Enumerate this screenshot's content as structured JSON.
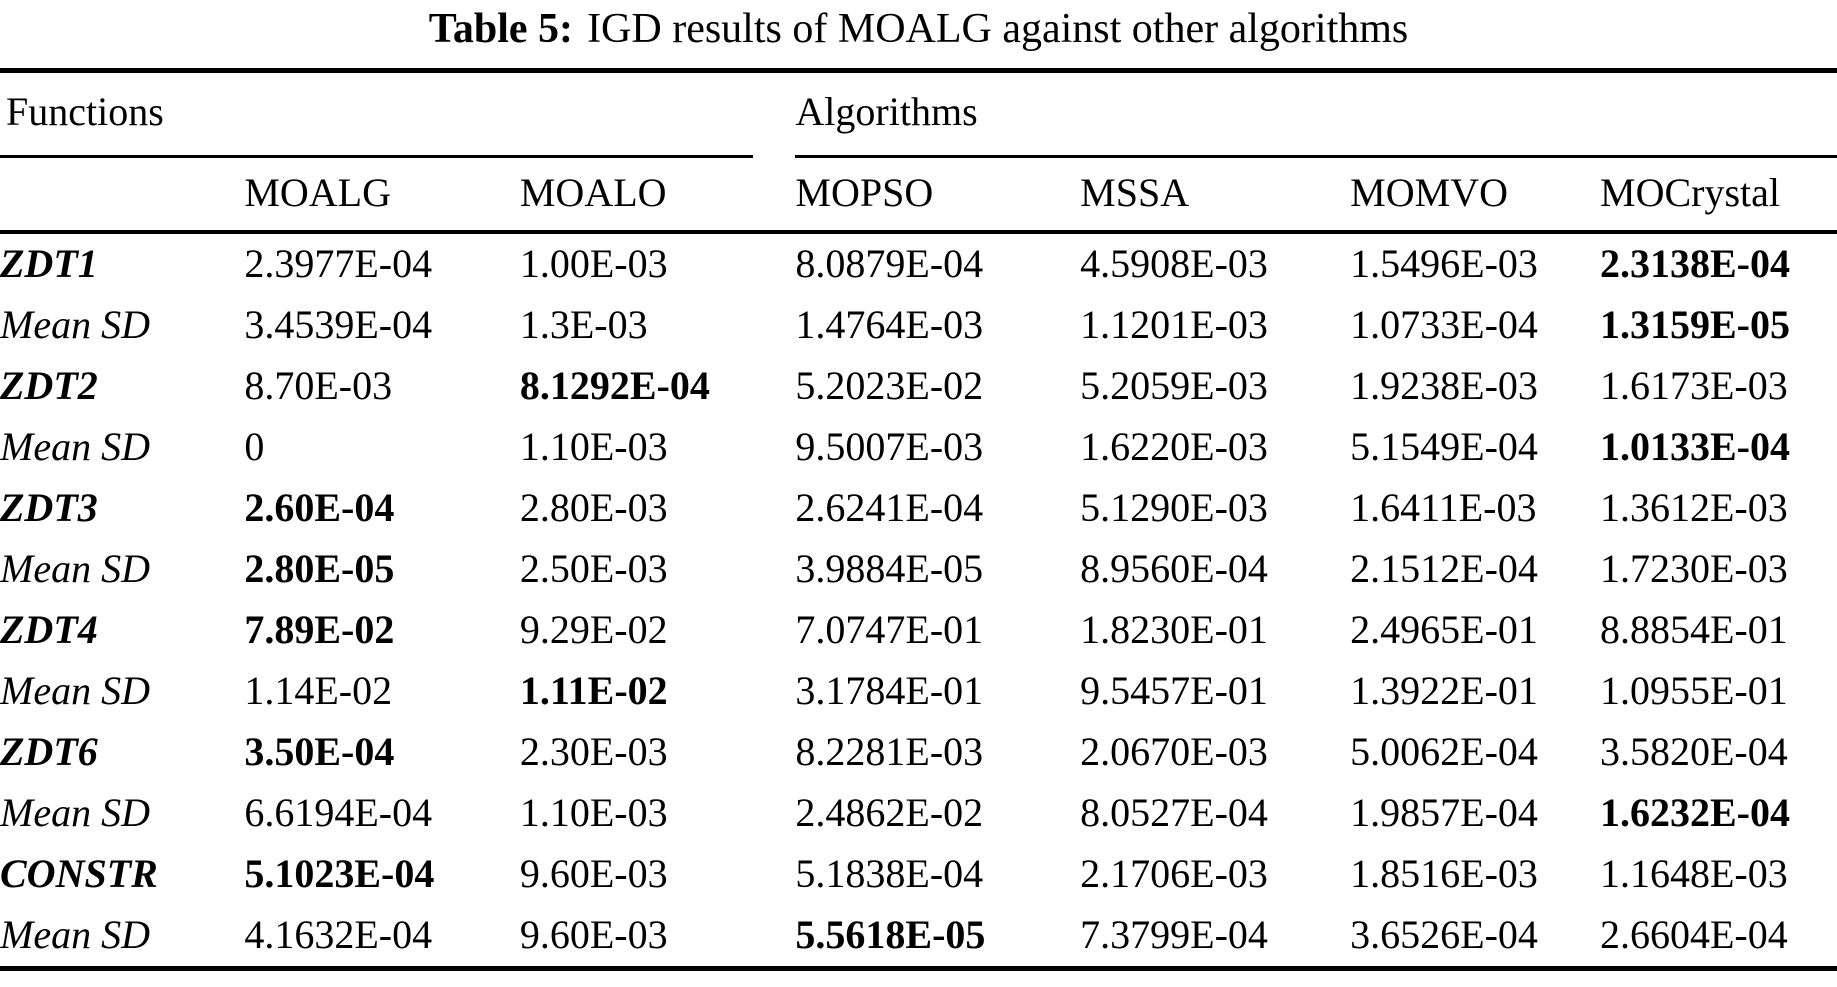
{
  "title": {
    "label": "Table 5:",
    "text": "IGD results of MOALG against other algorithms"
  },
  "table": {
    "group_headers": [
      "Functions",
      "Algorithms"
    ],
    "columns": [
      "",
      "MOALG",
      "MOALO",
      "MOPSO",
      "MSSA",
      "MOMVO",
      "MOCrystal"
    ],
    "rows": [
      {
        "name": "ZDT1",
        "type": "function",
        "values": [
          "2.3977E-04",
          "1.00E-03",
          "8.0879E-04",
          "4.5908E-03",
          "1.5496E-03",
          "2.3138E-04"
        ],
        "bold": [
          false,
          false,
          false,
          false,
          false,
          true
        ]
      },
      {
        "name": "Mean SD",
        "type": "meansd",
        "values": [
          "3.4539E-04",
          "1.3E-03",
          "1.4764E-03",
          "1.1201E-03",
          "1.0733E-04",
          "1.3159E-05"
        ],
        "bold": [
          false,
          false,
          false,
          false,
          false,
          true
        ]
      },
      {
        "name": "ZDT2",
        "type": "function",
        "values": [
          "8.70E-03",
          "8.1292E-04",
          "5.2023E-02",
          "5.2059E-03",
          "1.9238E-03",
          "1.6173E-03"
        ],
        "bold": [
          false,
          true,
          false,
          false,
          false,
          false
        ]
      },
      {
        "name": "Mean SD",
        "type": "meansd",
        "values": [
          "0",
          "1.10E-03",
          "9.5007E-03",
          "1.6220E-03",
          "5.1549E-04",
          "1.0133E-04"
        ],
        "bold": [
          false,
          false,
          false,
          false,
          false,
          true
        ]
      },
      {
        "name": "ZDT3",
        "type": "function",
        "values": [
          "2.60E-04",
          "2.80E-03",
          "2.6241E-04",
          "5.1290E-03",
          "1.6411E-03",
          "1.3612E-03"
        ],
        "bold": [
          true,
          false,
          false,
          false,
          false,
          false
        ]
      },
      {
        "name": "Mean SD",
        "type": "meansd",
        "values": [
          "2.80E-05",
          "2.50E-03",
          "3.9884E-05",
          "8.9560E-04",
          "2.1512E-04",
          "1.7230E-03"
        ],
        "bold": [
          true,
          false,
          false,
          false,
          false,
          false
        ]
      },
      {
        "name": "ZDT4",
        "type": "function",
        "values": [
          "7.89E-02",
          "9.29E-02",
          "7.0747E-01",
          "1.8230E-01",
          "2.4965E-01",
          "8.8854E-01"
        ],
        "bold": [
          true,
          false,
          false,
          false,
          false,
          false
        ]
      },
      {
        "name": "Mean SD",
        "type": "meansd",
        "values": [
          "1.14E-02",
          "1.11E-02",
          "3.1784E-01",
          "9.5457E-01",
          "1.3922E-01",
          "1.0955E-01"
        ],
        "bold": [
          false,
          true,
          false,
          false,
          false,
          false
        ]
      },
      {
        "name": "ZDT6",
        "type": "function",
        "values": [
          "3.50E-04",
          "2.30E-03",
          "8.2281E-03",
          "2.0670E-03",
          "5.0062E-04",
          "3.5820E-04"
        ],
        "bold": [
          true,
          false,
          false,
          false,
          false,
          false
        ]
      },
      {
        "name": "Mean SD",
        "type": "meansd",
        "values": [
          "6.6194E-04",
          "1.10E-03",
          "2.4862E-02",
          "8.0527E-04",
          "1.9857E-04",
          "1.6232E-04"
        ],
        "bold": [
          false,
          false,
          false,
          false,
          false,
          true
        ]
      },
      {
        "name": "CONSTR",
        "type": "function",
        "values": [
          "5.1023E-04",
          "9.60E-03",
          "5.1838E-04",
          "2.1706E-03",
          "1.8516E-03",
          "1.1648E-03"
        ],
        "bold": [
          true,
          false,
          false,
          false,
          false,
          false
        ]
      },
      {
        "name": "Mean SD",
        "type": "meansd",
        "values": [
          "4.1632E-04",
          "9.60E-03",
          "5.5618E-05",
          "7.3799E-04",
          "3.6526E-04",
          "2.6604E-04"
        ],
        "bold": [
          false,
          false,
          true,
          false,
          false,
          false
        ]
      }
    ]
  }
}
